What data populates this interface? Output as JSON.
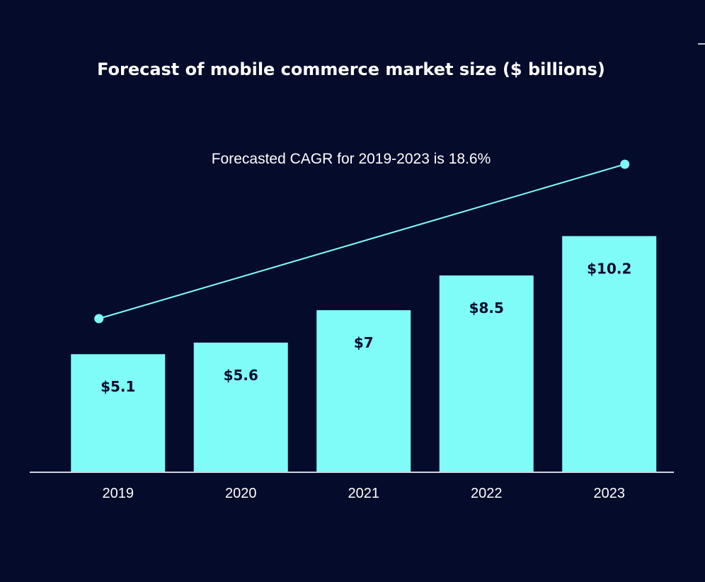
{
  "colors": {
    "background": "#040b2b",
    "bar": "#7ffcf8",
    "text": "#ffffff",
    "data_label": "#040b2b",
    "axis": "#cfd3df",
    "trend_line": "#7ffcf8"
  },
  "chart_data": {
    "type": "bar",
    "title": "Forecast of mobile commerce market size ($ billions)",
    "xlabel": "",
    "ylabel": "",
    "categories": [
      "2019",
      "2020",
      "2021",
      "2022",
      "2023"
    ],
    "values": [
      5.1,
      5.6,
      7,
      8.5,
      10.2
    ],
    "data_labels": [
      "$5.1",
      "$5.6",
      "$7",
      "$8.5",
      "$10.2"
    ],
    "ylim": [
      0,
      13
    ],
    "grid": false,
    "annotation": "Forecasted CAGR for 2019-2023 is 18.6%",
    "trend_line": {
      "from_category": "2019",
      "to_category": "2023"
    }
  }
}
